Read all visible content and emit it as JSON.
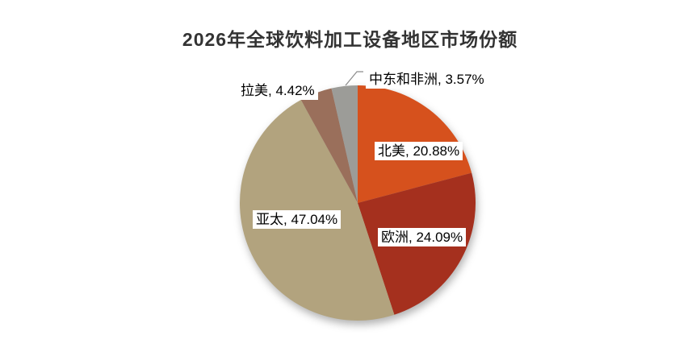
{
  "title": "2026年全球饮料加工设备地区市场份额",
  "chart_data": {
    "type": "pie",
    "title": "2026年全球饮料加工设备地区市场份额",
    "categories": [
      "北美",
      "欧洲",
      "亚太",
      "拉美",
      "中东和非洲"
    ],
    "values": [
      20.88,
      24.09,
      47.04,
      4.42,
      3.57
    ],
    "colors": [
      "#D6511D",
      "#A5301E",
      "#B2A37E",
      "#9A6F5B",
      "#9C9C98"
    ],
    "units": "%",
    "label_format": "{category}, {value}%",
    "start_angle_deg": 0,
    "direction": "clockwise",
    "legend": "none",
    "leader_line_color": "#8C8C8C"
  }
}
